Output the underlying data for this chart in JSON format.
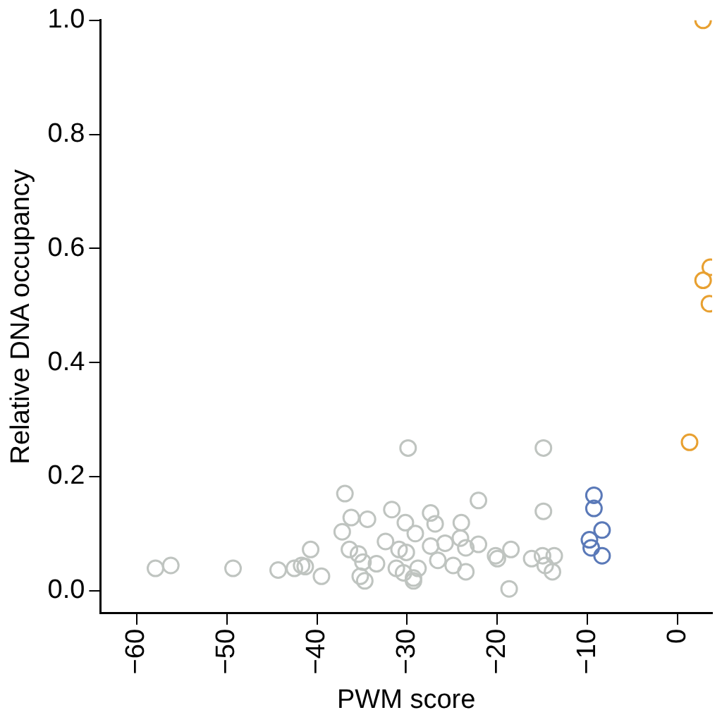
{
  "chart_data": {
    "type": "scatter",
    "xlabel": "PWM score",
    "ylabel": "Relative DNA occupancy",
    "xlim": [
      -64,
      3.8
    ],
    "ylim": [
      -0.04,
      1.0
    ],
    "xticks": [
      -60,
      -50,
      -40,
      -30,
      -20,
      -10,
      0
    ],
    "yticks": [
      {
        "value": 0,
        "label": "0.0"
      },
      {
        "value": 0.2,
        "label": "0.2"
      },
      {
        "value": 0.4,
        "label": "0.4"
      },
      {
        "value": 0.6,
        "label": "0.6"
      },
      {
        "value": 0.8,
        "label": "0.8"
      },
      {
        "value": 1,
        "label": "1.0"
      }
    ],
    "grid": false,
    "legend": false,
    "marker": "circle",
    "series": [
      {
        "color": "#bfc4c0",
        "x": [
          -57.9,
          -56.2,
          -49.3,
          -44.3,
          -42.5,
          -41.7,
          -41.3,
          -40.7,
          -39.5,
          -36.9,
          -36.2,
          -34.4,
          -37.2,
          -36.4,
          -35.4,
          -34.9,
          -35.2,
          -34.7,
          -33.4,
          -31.7,
          -30.2,
          -32.4,
          -30.9,
          -31.2,
          -30.4,
          -29.3,
          -29.1,
          -28.8,
          -29.9,
          -14.9,
          -14.9,
          -22.1,
          -27.4,
          -26.9,
          -24.0,
          -25.8,
          -27.4,
          -24.1,
          -23.5,
          -22.1,
          -26.6,
          -24.9,
          -23.5,
          -20.2,
          -18.5,
          -20.0,
          -18.7,
          -16.2,
          -15.0,
          -13.7,
          -14.7,
          -13.9,
          -30.1,
          -29.3
        ],
        "values": [
          0.039,
          0.044,
          0.039,
          0.036,
          0.039,
          0.044,
          0.042,
          0.072,
          0.025,
          0.17,
          0.128,
          0.125,
          0.103,
          0.072,
          0.064,
          0.05,
          0.025,
          0.017,
          0.047,
          0.142,
          0.119,
          0.086,
          0.072,
          0.039,
          0.031,
          0.022,
          0.1,
          0.039,
          0.25,
          0.25,
          0.139,
          0.158,
          0.136,
          0.117,
          0.119,
          0.083,
          0.078,
          0.092,
          0.075,
          0.081,
          0.053,
          0.044,
          0.033,
          0.061,
          0.072,
          0.056,
          0.003,
          0.056,
          0.061,
          0.061,
          0.044,
          0.033,
          0.067,
          0.017
        ]
      },
      {
        "color": "#5a79b8",
        "x": [
          -9.3,
          -9.3,
          -8.4,
          -9.8,
          -9.6,
          -8.4
        ],
        "values": [
          0.167,
          0.144,
          0.106,
          0.089,
          0.075,
          0.061
        ]
      },
      {
        "color": "#e8a030",
        "x": [
          2.8,
          3.6,
          2.8,
          3.5,
          1.3
        ],
        "values": [
          1.0,
          0.567,
          0.544,
          0.503,
          0.26
        ]
      }
    ]
  }
}
